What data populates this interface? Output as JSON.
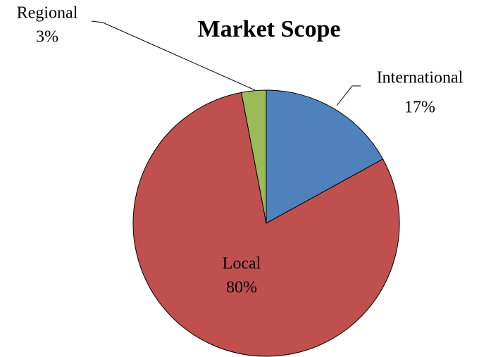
{
  "chart_data": {
    "type": "pie",
    "title": "Market Scope",
    "categories": [
      "International",
      "Local",
      "Regional"
    ],
    "values": [
      17,
      80,
      3
    ],
    "value_labels": [
      "17%",
      "80%",
      "3%"
    ],
    "colors": [
      "#4f81bd",
      "#c0504d",
      "#9bbb59"
    ]
  }
}
